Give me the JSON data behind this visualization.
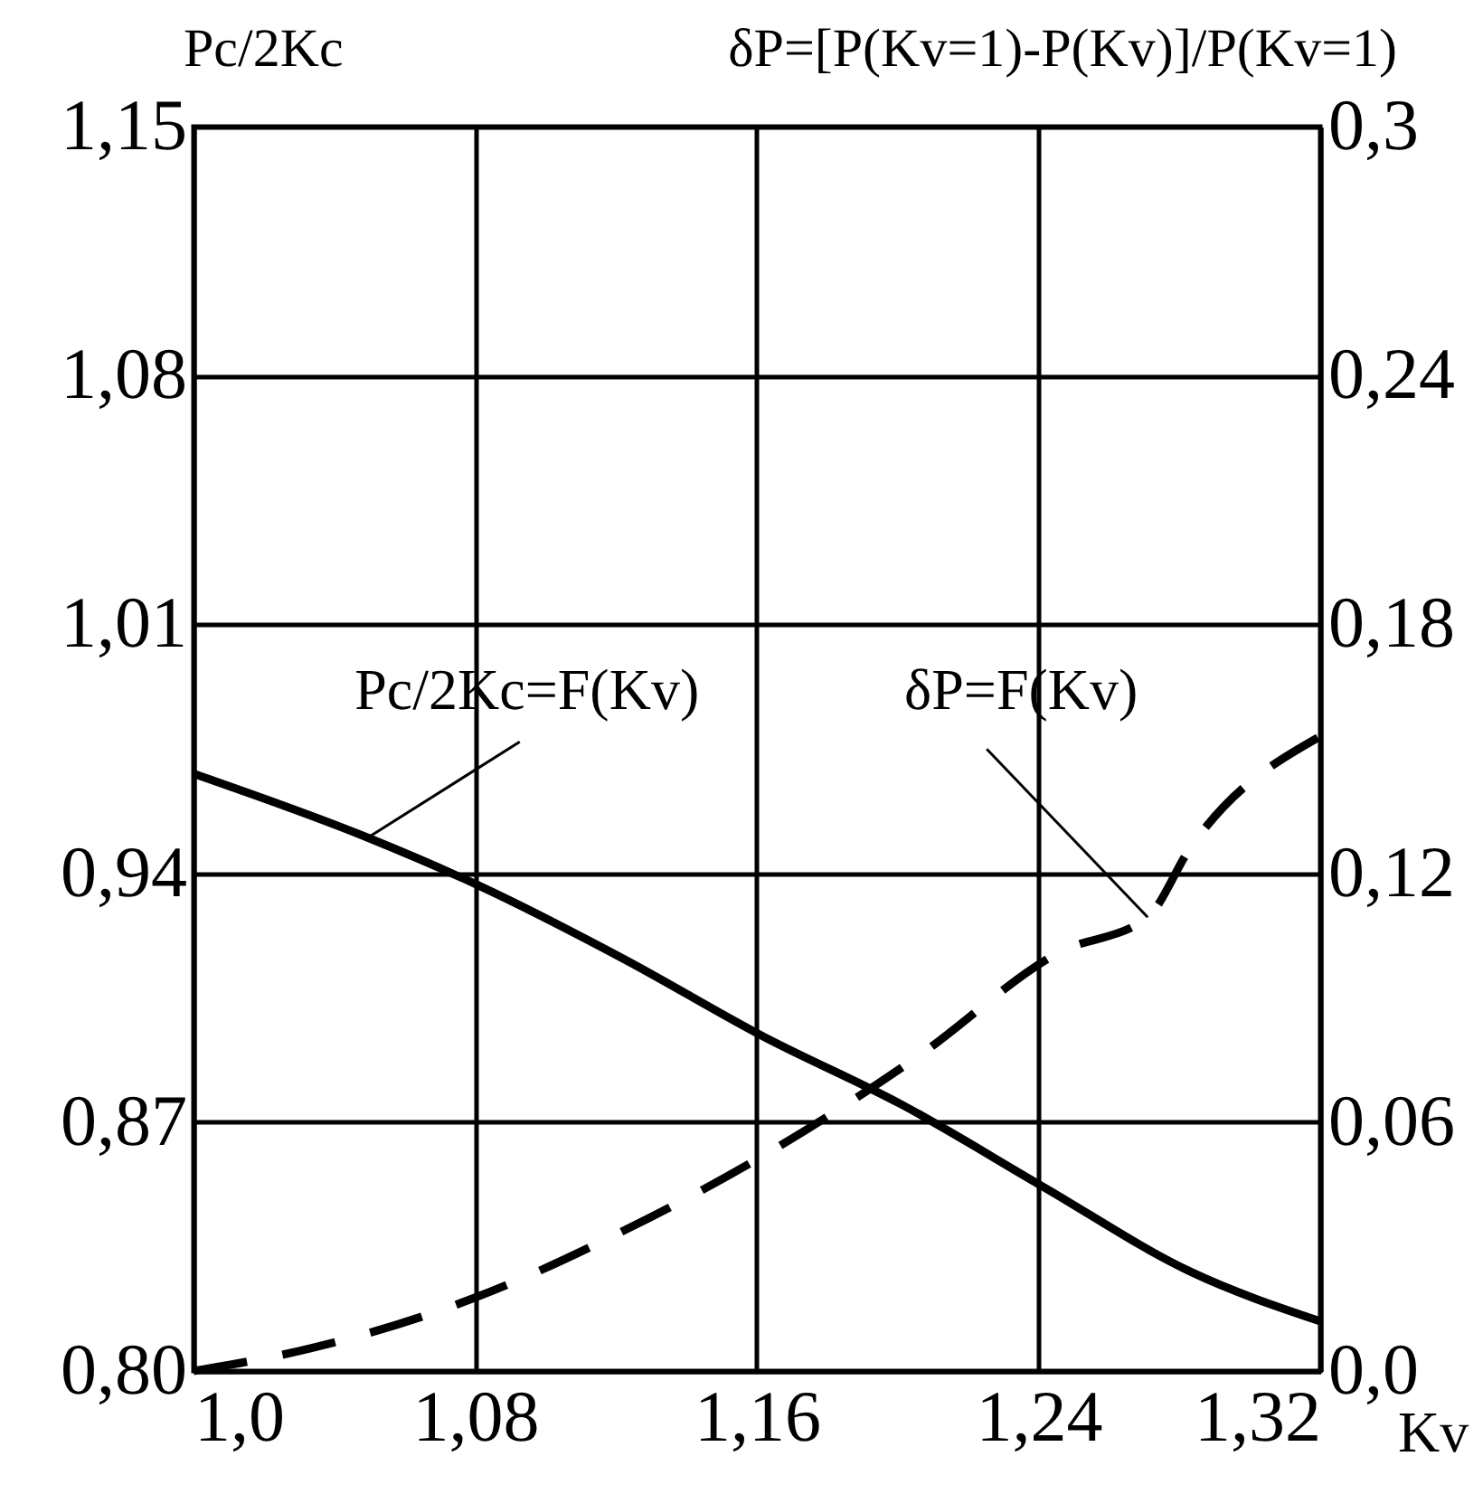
{
  "chart_data": {
    "type": "line",
    "ylabel": "Pc/2Kc",
    "y2label": "δP=[P(Kv=1)-P(Kv)]/P(Kv=1)",
    "xlabel": "Kv",
    "x": [
      1.0,
      1.0495,
      1.08,
      1.122,
      1.162,
      1.201,
      1.241,
      1.283,
      1.32
    ],
    "series": [
      {
        "name": "Pc/2Kc=F(Kv)",
        "color": "#000000",
        "line_style": "solid",
        "values": [
          0.968,
          0.95,
          0.937,
          0.916,
          0.894,
          0.875,
          0.852,
          0.828,
          0.814
        ]
      },
      {
        "name": "δP=F(Kv)",
        "color": "#000000",
        "line_style": "dashed",
        "axis": "y2",
        "x": [
          1.0,
          1.033,
          1.08,
          1.124,
          1.166,
          1.206,
          1.246,
          1.271,
          1.283,
          1.32
        ],
        "values": [
          0.0,
          0.0054,
          0.0177,
          0.0346,
          0.054,
          0.076,
          0.101,
          0.1094,
          0.126,
          0.153
        ]
      }
    ],
    "xlim": [
      1.0,
      1.32
    ],
    "xticks": [
      {
        "value": 1.0,
        "label": "1,0"
      },
      {
        "value": 1.08,
        "label": "1,08"
      },
      {
        "value": 1.16,
        "label": "1,16"
      },
      {
        "value": 1.24,
        "label": "1,24"
      },
      {
        "value": 1.32,
        "label": "1,32"
      }
    ],
    "ylim": [
      0.8,
      1.15
    ],
    "yticks": [
      {
        "value": 0.8,
        "label": "0,80"
      },
      {
        "value": 0.87,
        "label": "0,87"
      },
      {
        "value": 0.94,
        "label": "0,94"
      },
      {
        "value": 1.01,
        "label": "1,01"
      },
      {
        "value": 1.08,
        "label": "1,08"
      },
      {
        "value": 1.15,
        "label": "1,15"
      }
    ],
    "y2lim": [
      0,
      0.3
    ],
    "y2ticks": [
      {
        "value": 0,
        "label": "0,0"
      },
      {
        "value": 0.06,
        "label": "0,06"
      },
      {
        "value": 0.12,
        "label": "0,12"
      },
      {
        "value": 0.18,
        "label": "0,18"
      },
      {
        "value": 0.24,
        "label": "0,24"
      },
      {
        "value": 0.3,
        "label": "0,3"
      }
    ],
    "grid": true,
    "marker": "none"
  }
}
